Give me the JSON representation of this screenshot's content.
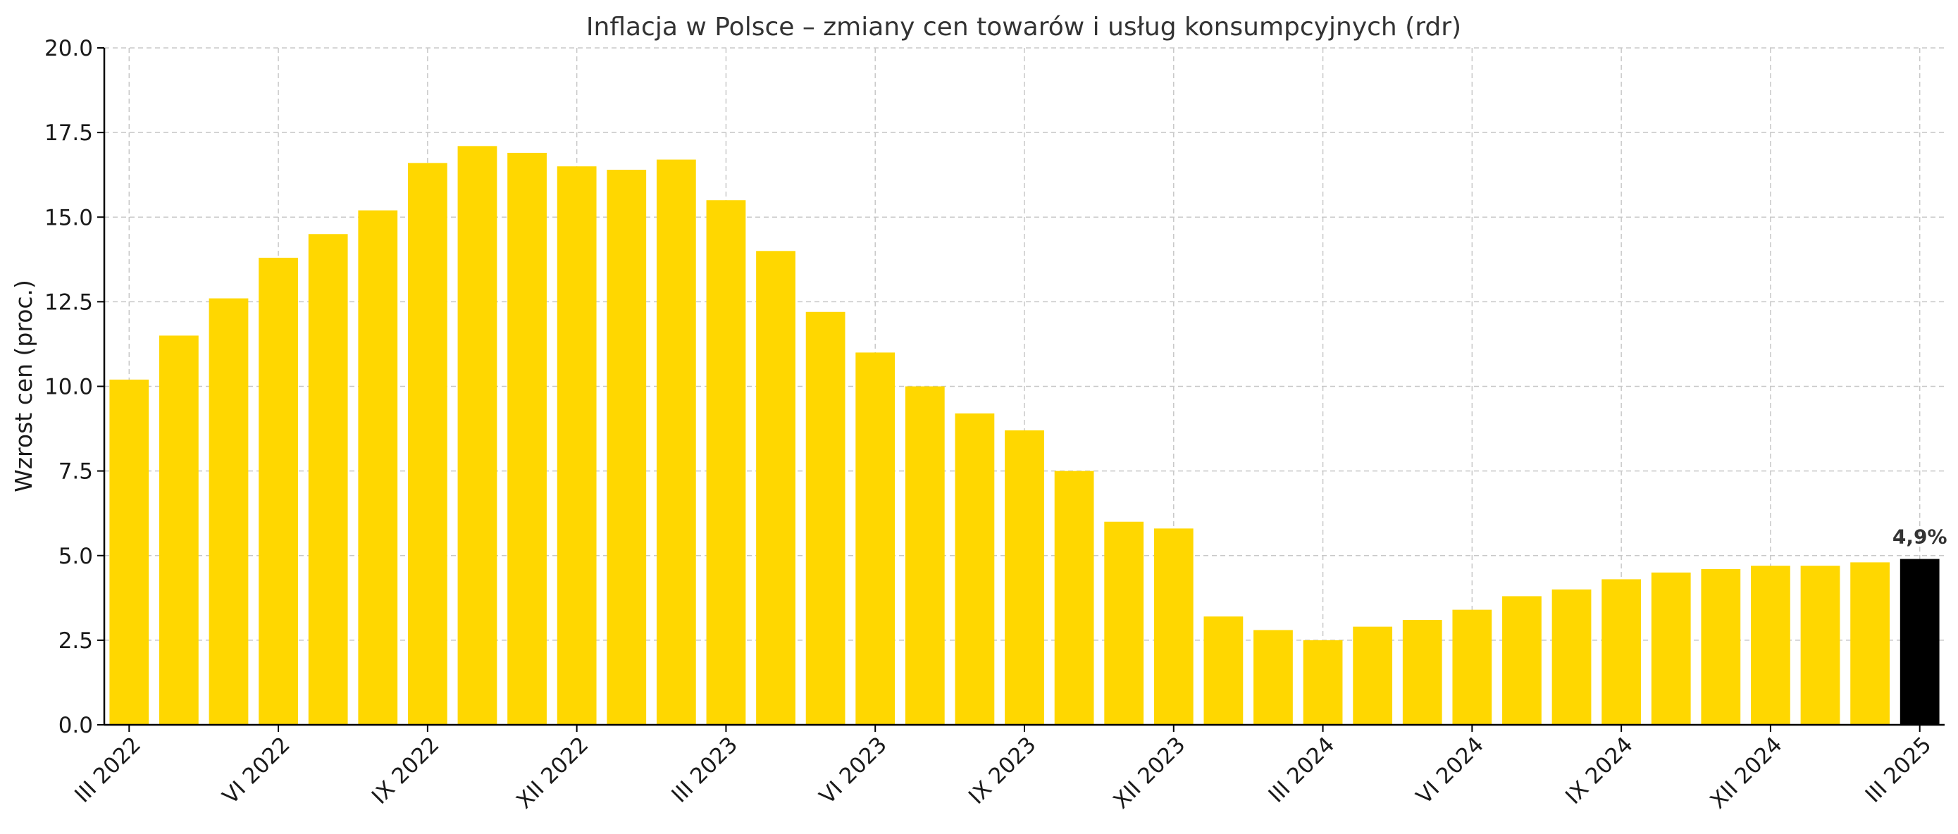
{
  "chart_data": {
    "type": "bar",
    "title": "Inflacja w Polsce – zmiany cen towarów i usług konsumpcyjnych (rdr)",
    "xlabel": "",
    "ylabel": "Wzrost cen (proc.)",
    "ylim": [
      0,
      20
    ],
    "yticks": [
      "0.0",
      "2.5",
      "5.0",
      "7.5",
      "10.0",
      "12.5",
      "15.0",
      "17.5",
      "20.0"
    ],
    "grid": true,
    "colors": {
      "default": "#FFD700",
      "highlight": "#000000"
    },
    "highlight_index": 36,
    "tick_labels": [
      {
        "index": 0,
        "label": "III 2022"
      },
      {
        "index": 3,
        "label": "VI 2022"
      },
      {
        "index": 6,
        "label": "IX 2022"
      },
      {
        "index": 9,
        "label": "XII 2022"
      },
      {
        "index": 12,
        "label": "III 2023"
      },
      {
        "index": 15,
        "label": "VI 2023"
      },
      {
        "index": 18,
        "label": "IX 2023"
      },
      {
        "index": 21,
        "label": "XII 2023"
      },
      {
        "index": 24,
        "label": "III 2024"
      },
      {
        "index": 27,
        "label": "VI 2024"
      },
      {
        "index": 30,
        "label": "IX 2024"
      },
      {
        "index": 33,
        "label": "XII 2024"
      },
      {
        "index": 36,
        "label": "III 2025"
      }
    ],
    "values": [
      10.2,
      11.5,
      12.6,
      13.8,
      14.5,
      15.2,
      16.6,
      17.1,
      16.9,
      16.5,
      16.4,
      16.7,
      15.5,
      14.0,
      12.2,
      11.0,
      10.0,
      9.2,
      8.7,
      7.5,
      6.0,
      5.8,
      3.2,
      2.8,
      2.5,
      2.9,
      3.1,
      3.4,
      3.8,
      4.0,
      4.3,
      4.5,
      4.6,
      4.7,
      4.7,
      4.8,
      4.9
    ],
    "annotations": [
      {
        "index": 36,
        "text": "4,9%"
      }
    ]
  }
}
